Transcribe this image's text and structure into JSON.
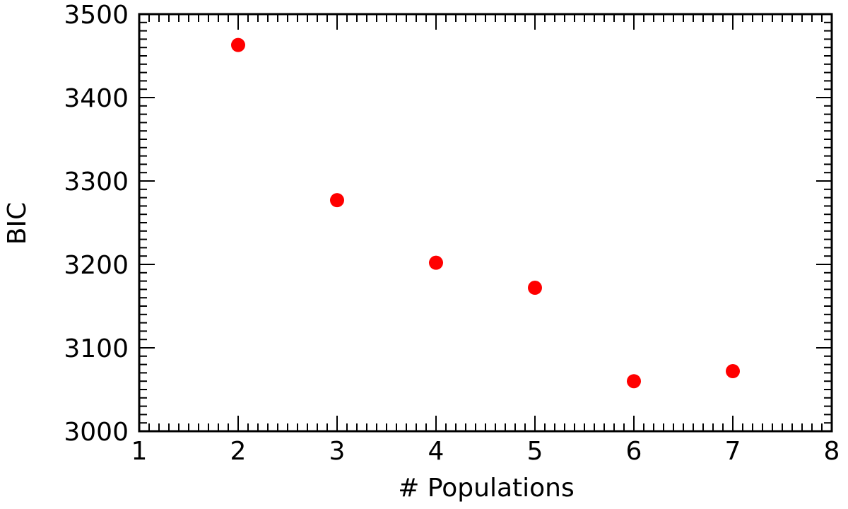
{
  "chart_data": {
    "type": "scatter",
    "xlabel": "# Populations",
    "ylabel": "BIC",
    "xlim": [
      1,
      8
    ],
    "ylim": [
      3000,
      3500
    ],
    "x_ticks": [
      "1",
      "2",
      "3",
      "4",
      "5",
      "6",
      "7",
      "8"
    ],
    "y_ticks": [
      "3000",
      "3100",
      "3200",
      "3300",
      "3400",
      "3500"
    ],
    "grid": false,
    "series": [
      {
        "color": "#ff0000",
        "points": [
          {
            "x": 2,
            "y": 3463
          },
          {
            "x": 3,
            "y": 3277
          },
          {
            "x": 4,
            "y": 3202
          },
          {
            "x": 5,
            "y": 3172
          },
          {
            "x": 6,
            "y": 3060
          },
          {
            "x": 7,
            "y": 3072
          }
        ]
      }
    ]
  }
}
